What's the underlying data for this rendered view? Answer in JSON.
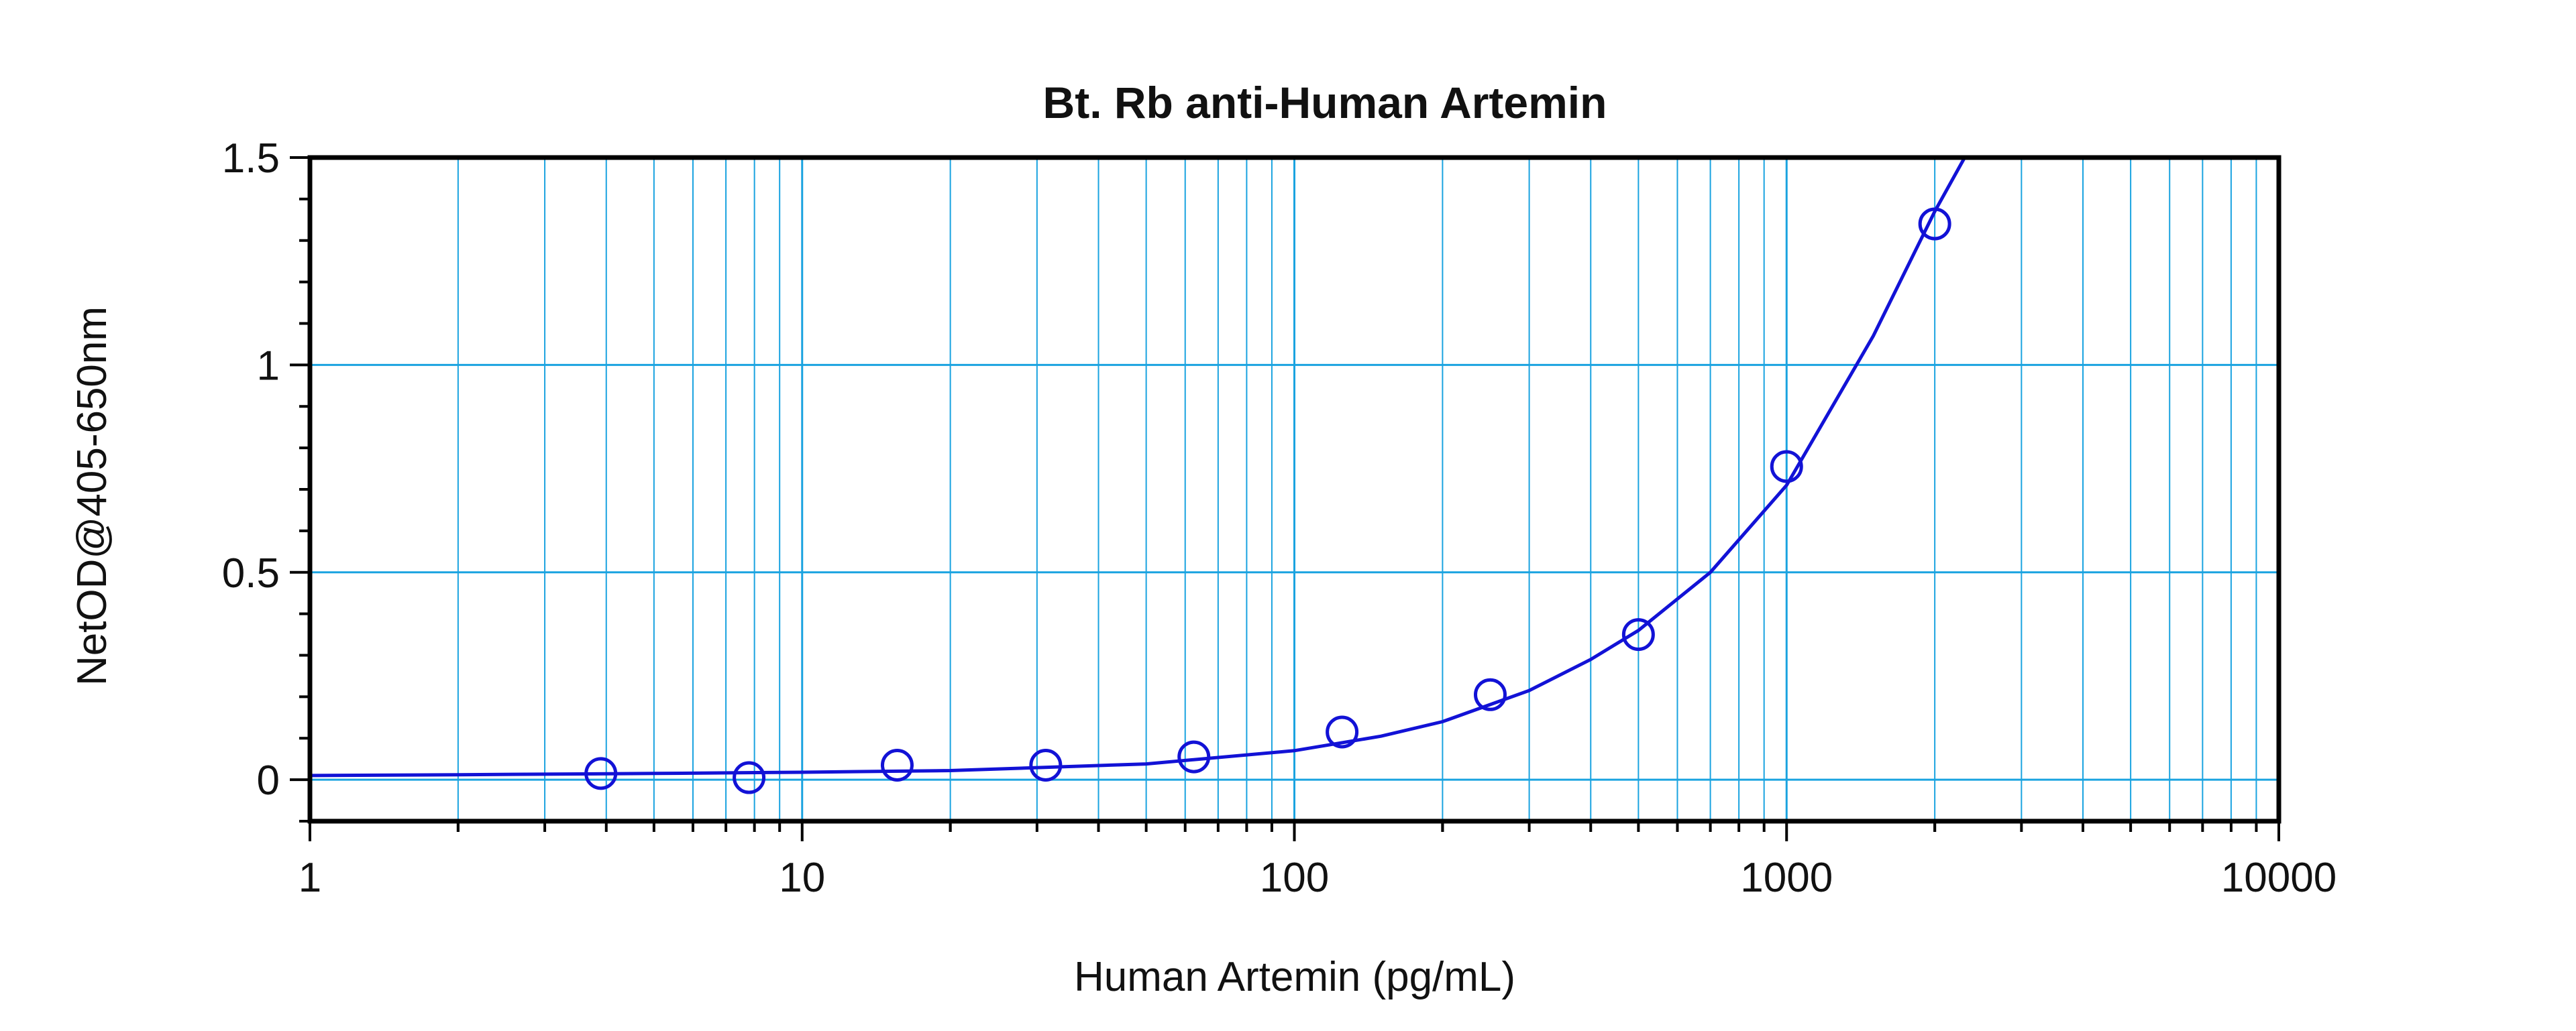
{
  "chart_data": {
    "type": "scatter",
    "title": "Bt. Rb anti-Human Artemin",
    "xlabel": "Human Artemin (pg/mL)",
    "ylabel": "NetOD@405-650nm",
    "x_scale": "log",
    "xlim": [
      1,
      10000
    ],
    "ylim": [
      -0.1,
      1.5
    ],
    "x_ticks": [
      {
        "value": 1,
        "label": "1"
      },
      {
        "value": 10,
        "label": "10"
      },
      {
        "value": 100,
        "label": "100"
      },
      {
        "value": 1000,
        "label": "1000"
      },
      {
        "value": 10000,
        "label": "10000"
      }
    ],
    "y_ticks": [
      {
        "value": 0,
        "label": "0"
      },
      {
        "value": 0.5,
        "label": "0.5"
      },
      {
        "value": 1,
        "label": "1"
      },
      {
        "value": 1.5,
        "label": "1.5"
      }
    ],
    "grid": true,
    "series": [
      {
        "x": [
          3.9,
          7.8,
          15.6,
          31.25,
          62.5,
          125,
          250,
          500,
          1000,
          2000
        ],
        "y": [
          0.015,
          0.005,
          0.035,
          0.035,
          0.055,
          0.115,
          0.205,
          0.35,
          0.755,
          1.34
        ]
      }
    ],
    "fit_curve": {
      "x": [
        1,
        2,
        5,
        10,
        20,
        50,
        100,
        150,
        200,
        300,
        400,
        500,
        700,
        1000,
        1500,
        2000,
        2300
      ],
      "y": [
        0.01,
        0.012,
        0.015,
        0.018,
        0.022,
        0.038,
        0.07,
        0.105,
        0.14,
        0.215,
        0.29,
        0.36,
        0.5,
        0.71,
        1.07,
        1.37,
        1.5
      ]
    },
    "colors": {
      "grid": "#1aa3e0",
      "series": "#1212d6",
      "frame": "#000000"
    }
  }
}
